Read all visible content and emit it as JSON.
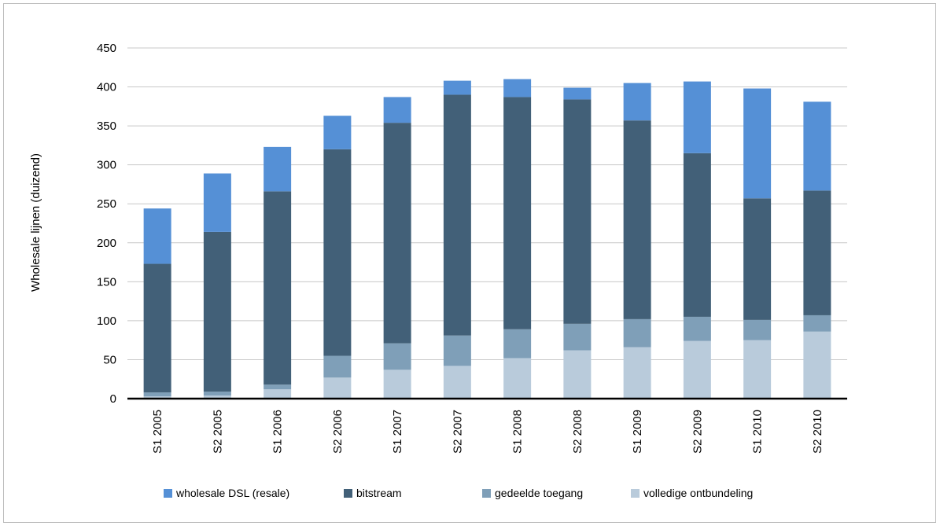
{
  "chart_data": {
    "type": "bar",
    "stacked": true,
    "title": "",
    "xlabel": "",
    "ylabel": "Wholesale lijnen (duizend)",
    "ylim": [
      0,
      450
    ],
    "yticks": [
      0,
      50,
      100,
      150,
      200,
      250,
      300,
      350,
      400,
      450
    ],
    "grid": true,
    "legend_position": "bottom",
    "categories": [
      "S1 2005",
      "S2 2005",
      "S1 2006",
      "S2 2006",
      "S1 2007",
      "S2 2007",
      "S1 2008",
      "S2 2008",
      "S1 2009",
      "S2 2009",
      "S1 2010",
      "S2 2010"
    ],
    "series": [
      {
        "name": "volledige ontbundeling",
        "color": "#b9cbdb",
        "values": [
          3,
          4,
          12,
          27,
          37,
          42,
          52,
          62,
          66,
          74,
          75,
          86
        ]
      },
      {
        "name": "gedeelde toegang",
        "color": "#7f9fb8",
        "values": [
          5,
          5,
          6,
          28,
          34,
          39,
          37,
          34,
          36,
          31,
          26,
          21
        ]
      },
      {
        "name": "bitstream",
        "color": "#426078",
        "values": [
          165,
          205,
          248,
          265,
          283,
          309,
          298,
          288,
          255,
          210,
          156,
          160
        ]
      },
      {
        "name": "wholesale DSL (resale)",
        "color": "#5590d6",
        "values": [
          71,
          75,
          57,
          43,
          33,
          18,
          23,
          15,
          48,
          92,
          141,
          114
        ]
      }
    ],
    "legend_order": [
      "wholesale DSL (resale)",
      "bitstream",
      "gedeelde toegang",
      "volledige ontbundeling"
    ]
  }
}
